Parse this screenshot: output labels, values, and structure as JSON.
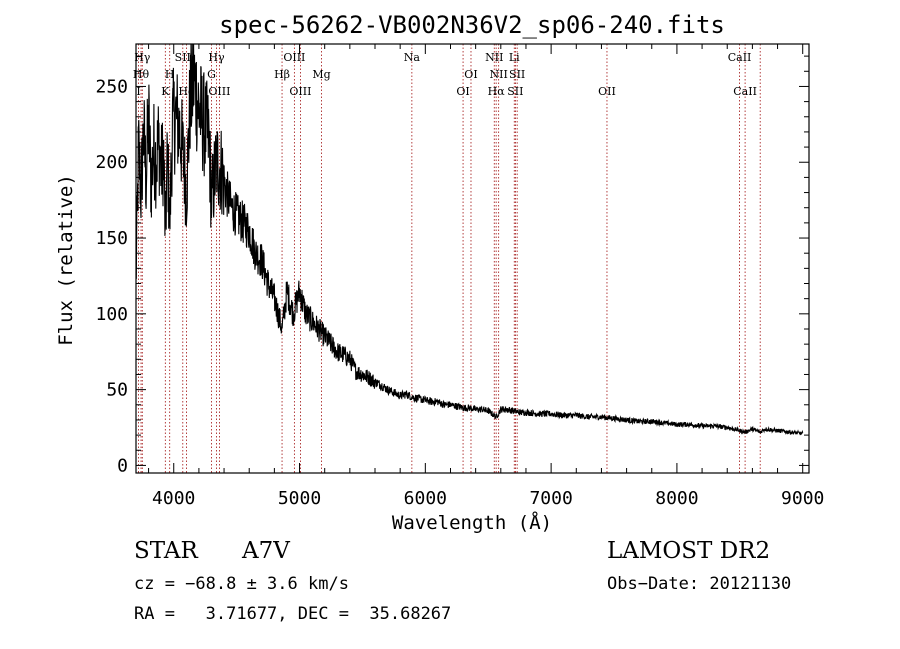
{
  "chart_data": {
    "type": "line",
    "title": "spec-56262-VB002N36V2_sp06-240.fits",
    "xlabel": "Wavelength (Å)",
    "ylabel": "Flux (relative)",
    "xlim": [
      3700,
      9050
    ],
    "ylim": [
      -5,
      278
    ],
    "xticks": [
      4000,
      5000,
      6000,
      7000,
      8000,
      9000
    ],
    "yticks": [
      0,
      50,
      100,
      150,
      200,
      250
    ],
    "grid": false,
    "line_color": "#000000",
    "marker_color": "#a01010",
    "series": [
      {
        "x": [
          3700,
          3720,
          3740,
          3760,
          3780,
          3800,
          3820,
          3840,
          3860,
          3880,
          3900,
          3920,
          3933,
          3950,
          3968,
          3990,
          4020,
          4050,
          4080,
          4101,
          4130,
          4160,
          4200,
          4240,
          4280,
          4300,
          4340,
          4380,
          4420,
          4460,
          4500,
          4550,
          4600,
          4650,
          4700,
          4750,
          4800,
          4861,
          4900,
          4950,
          5000,
          5050,
          5100,
          5150,
          5200,
          5250,
          5300,
          5350,
          5400,
          5450,
          5500,
          5550,
          5600,
          5650,
          5700,
          5750,
          5800,
          5850,
          5900,
          5950,
          6000,
          6050,
          6100,
          6150,
          6200,
          6250,
          6300,
          6350,
          6400,
          6450,
          6500,
          6563,
          6600,
          6650,
          6700,
          6750,
          6800,
          6900,
          7000,
          7100,
          7200,
          7300,
          7400,
          7500,
          7600,
          7700,
          7800,
          7900,
          8000,
          8100,
          8200,
          8300,
          8400,
          8500,
          8542,
          8600,
          8662,
          8700,
          8800,
          8900,
          9000
        ],
        "y": [
          120,
          210,
          180,
          220,
          190,
          230,
          185,
          210,
          200,
          215,
          195,
          205,
          150,
          205,
          160,
          225,
          230,
          220,
          200,
          180,
          240,
          255,
          235,
          225,
          215,
          175,
          200,
          195,
          180,
          170,
          165,
          160,
          155,
          140,
          135,
          120,
          110,
          90,
          115,
          100,
          115,
          100,
          95,
          90,
          85,
          80,
          75,
          73,
          70,
          62,
          60,
          58,
          55,
          53,
          50,
          48,
          46,
          47,
          45,
          44,
          43,
          42,
          42,
          40,
          40,
          39,
          38,
          38,
          37,
          37,
          36,
          32,
          37,
          37,
          36,
          35,
          35,
          34,
          34,
          33,
          33,
          32,
          32,
          31,
          30,
          29,
          29,
          28,
          27,
          27,
          26,
          26,
          25,
          23,
          22,
          24,
          22,
          24,
          23,
          22,
          21
        ]
      }
    ],
    "line_markers": [
      {
        "wl": 3750,
        "label": "Hγ",
        "row": 0
      },
      {
        "wl": 3740,
        "label": "Hθ",
        "row": 1
      },
      {
        "wl": 3720,
        "label": "I",
        "row": 2
      },
      {
        "wl": 3933,
        "label": "K",
        "row": 2
      },
      {
        "wl": 3968,
        "label": "H",
        "row": 1
      },
      {
        "wl": 4072,
        "label": "SII",
        "row": 0
      },
      {
        "wl": 4101,
        "label": "Hδ",
        "row": 2
      },
      {
        "wl": 4300,
        "label": "G",
        "row": 1
      },
      {
        "wl": 4340,
        "label": "Hγ",
        "row": 0
      },
      {
        "wl": 4363,
        "label": "OIII",
        "row": 2
      },
      {
        "wl": 4861,
        "label": "Hβ",
        "row": 1
      },
      {
        "wl": 4959,
        "label": "OIII",
        "row": 0
      },
      {
        "wl": 5007,
        "label": "OIII",
        "row": 2
      },
      {
        "wl": 5175,
        "label": "Mg",
        "row": 1
      },
      {
        "wl": 5893,
        "label": "Na",
        "row": 0
      },
      {
        "wl": 6300,
        "label": "OI",
        "row": 2
      },
      {
        "wl": 6363,
        "label": "OI",
        "row": 1
      },
      {
        "wl": 6548,
        "label": "NII",
        "row": 0
      },
      {
        "wl": 6563,
        "label": "Hα",
        "row": 2
      },
      {
        "wl": 6583,
        "label": "NII",
        "row": 1
      },
      {
        "wl": 6707,
        "label": "Li",
        "row": 0
      },
      {
        "wl": 6716,
        "label": "SII",
        "row": 2
      },
      {
        "wl": 6730,
        "label": "SII",
        "row": 1
      },
      {
        "wl": 7444,
        "label": "OII",
        "row": 2
      },
      {
        "wl": 8498,
        "label": "CaII",
        "row": 0
      },
      {
        "wl": 8542,
        "label": "CaII",
        "row": 2
      },
      {
        "wl": 8662,
        "label": ""
      }
    ]
  },
  "info": {
    "class_label": "STAR",
    "subclass": "A7V",
    "survey": "LAMOST DR2",
    "cz": "cz = −68.8 ± 3.6 km/s",
    "obs_date": "Obs−Date: 20121130",
    "coords": "RA =   3.71677, DEC =  35.68267"
  }
}
